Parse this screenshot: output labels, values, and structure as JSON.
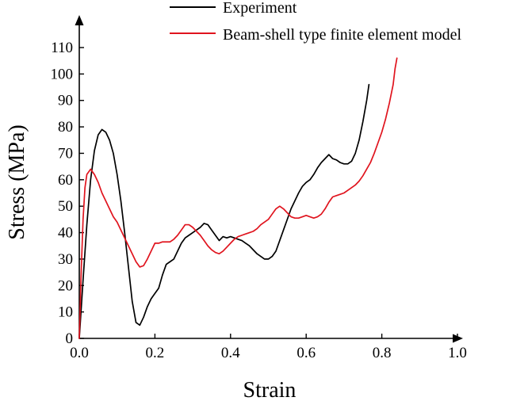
{
  "chart_data": {
    "type": "line",
    "title": "",
    "xlabel": "Strain",
    "ylabel": "Stress (MPa)",
    "xlim": [
      0.0,
      1.0
    ],
    "ylim": [
      0,
      110
    ],
    "xticks": [
      0.0,
      0.2,
      0.4,
      0.6,
      0.8,
      1.0
    ],
    "xtick_labels": [
      "0.0",
      "0.2",
      "0.4",
      "0.6",
      "0.8",
      "1.0"
    ],
    "yticks": [
      0,
      10,
      20,
      30,
      40,
      50,
      60,
      70,
      80,
      90,
      100,
      110
    ],
    "ytick_labels": [
      "0",
      "10",
      "20",
      "30",
      "40",
      "50",
      "60",
      "70",
      "80",
      "90",
      "100",
      "110"
    ],
    "grid": false,
    "legend": "top-right",
    "series": [
      {
        "name": "Experiment",
        "color": "#000000",
        "points": [
          [
            0.0,
            0
          ],
          [
            0.01,
            22
          ],
          [
            0.02,
            43
          ],
          [
            0.03,
            60
          ],
          [
            0.04,
            71
          ],
          [
            0.05,
            77
          ],
          [
            0.06,
            79
          ],
          [
            0.07,
            78
          ],
          [
            0.08,
            75
          ],
          [
            0.09,
            70
          ],
          [
            0.1,
            62
          ],
          [
            0.11,
            52
          ],
          [
            0.12,
            40
          ],
          [
            0.13,
            27
          ],
          [
            0.14,
            14
          ],
          [
            0.15,
            6
          ],
          [
            0.16,
            5
          ],
          [
            0.17,
            8
          ],
          [
            0.18,
            12
          ],
          [
            0.19,
            15
          ],
          [
            0.2,
            17
          ],
          [
            0.21,
            19
          ],
          [
            0.22,
            24
          ],
          [
            0.23,
            28
          ],
          [
            0.24,
            29
          ],
          [
            0.25,
            30
          ],
          [
            0.26,
            33
          ],
          [
            0.27,
            36
          ],
          [
            0.28,
            38
          ],
          [
            0.29,
            39
          ],
          [
            0.3,
            40
          ],
          [
            0.31,
            41
          ],
          [
            0.32,
            42
          ],
          [
            0.33,
            43.5
          ],
          [
            0.34,
            43
          ],
          [
            0.35,
            41
          ],
          [
            0.36,
            39
          ],
          [
            0.37,
            37
          ],
          [
            0.38,
            38.5
          ],
          [
            0.39,
            38
          ],
          [
            0.4,
            38.5
          ],
          [
            0.41,
            38
          ],
          [
            0.42,
            37.5
          ],
          [
            0.43,
            37
          ],
          [
            0.44,
            36
          ],
          [
            0.45,
            35
          ],
          [
            0.46,
            33.5
          ],
          [
            0.47,
            32
          ],
          [
            0.48,
            31
          ],
          [
            0.49,
            30
          ],
          [
            0.5,
            30
          ],
          [
            0.51,
            31
          ],
          [
            0.52,
            33
          ],
          [
            0.53,
            37
          ],
          [
            0.54,
            41
          ],
          [
            0.55,
            45
          ],
          [
            0.56,
            49
          ],
          [
            0.57,
            52
          ],
          [
            0.58,
            55
          ],
          [
            0.59,
            57.5
          ],
          [
            0.6,
            59
          ],
          [
            0.61,
            60
          ],
          [
            0.62,
            62
          ],
          [
            0.63,
            64.5
          ],
          [
            0.64,
            66.5
          ],
          [
            0.65,
            68
          ],
          [
            0.66,
            69.5
          ],
          [
            0.67,
            68
          ],
          [
            0.68,
            67.5
          ],
          [
            0.69,
            66.5
          ],
          [
            0.7,
            66
          ],
          [
            0.71,
            66
          ],
          [
            0.72,
            67
          ],
          [
            0.73,
            70
          ],
          [
            0.74,
            75
          ],
          [
            0.75,
            82
          ],
          [
            0.76,
            90
          ],
          [
            0.766,
            96
          ]
        ]
      },
      {
        "name": "Beam-shell type finite element model",
        "color": "#e0141e",
        "points": [
          [
            0.0,
            0
          ],
          [
            0.005,
            25
          ],
          [
            0.01,
            45
          ],
          [
            0.015,
            57
          ],
          [
            0.02,
            62
          ],
          [
            0.03,
            64
          ],
          [
            0.04,
            62
          ],
          [
            0.05,
            59
          ],
          [
            0.06,
            55
          ],
          [
            0.07,
            52
          ],
          [
            0.08,
            49
          ],
          [
            0.09,
            46
          ],
          [
            0.1,
            44
          ],
          [
            0.11,
            41
          ],
          [
            0.12,
            38
          ],
          [
            0.13,
            35
          ],
          [
            0.14,
            32
          ],
          [
            0.15,
            29
          ],
          [
            0.16,
            27
          ],
          [
            0.17,
            27.5
          ],
          [
            0.18,
            30
          ],
          [
            0.19,
            33
          ],
          [
            0.2,
            36
          ],
          [
            0.21,
            36
          ],
          [
            0.22,
            36.5
          ],
          [
            0.23,
            36.5
          ],
          [
            0.24,
            36.5
          ],
          [
            0.25,
            37.5
          ],
          [
            0.26,
            39
          ],
          [
            0.27,
            41
          ],
          [
            0.28,
            43
          ],
          [
            0.29,
            43
          ],
          [
            0.3,
            42
          ],
          [
            0.31,
            40.5
          ],
          [
            0.32,
            39
          ],
          [
            0.33,
            37
          ],
          [
            0.34,
            35
          ],
          [
            0.35,
            33.5
          ],
          [
            0.36,
            32.5
          ],
          [
            0.37,
            32
          ],
          [
            0.38,
            33
          ],
          [
            0.39,
            34.5
          ],
          [
            0.4,
            36
          ],
          [
            0.41,
            37.5
          ],
          [
            0.42,
            38.5
          ],
          [
            0.43,
            39
          ],
          [
            0.44,
            39.5
          ],
          [
            0.45,
            40
          ],
          [
            0.46,
            40.5
          ],
          [
            0.47,
            41.5
          ],
          [
            0.48,
            43
          ],
          [
            0.49,
            44
          ],
          [
            0.5,
            45
          ],
          [
            0.51,
            47
          ],
          [
            0.52,
            49
          ],
          [
            0.53,
            50
          ],
          [
            0.54,
            49
          ],
          [
            0.55,
            47.5
          ],
          [
            0.56,
            46
          ],
          [
            0.57,
            45.5
          ],
          [
            0.58,
            45.5
          ],
          [
            0.59,
            46
          ],
          [
            0.6,
            46.5
          ],
          [
            0.61,
            46
          ],
          [
            0.62,
            45.5
          ],
          [
            0.63,
            46
          ],
          [
            0.64,
            47
          ],
          [
            0.65,
            49
          ],
          [
            0.66,
            51.5
          ],
          [
            0.67,
            53.5
          ],
          [
            0.68,
            54
          ],
          [
            0.69,
            54.5
          ],
          [
            0.7,
            55
          ],
          [
            0.71,
            56
          ],
          [
            0.72,
            57
          ],
          [
            0.73,
            58
          ],
          [
            0.74,
            59.5
          ],
          [
            0.75,
            61.5
          ],
          [
            0.76,
            64
          ],
          [
            0.77,
            66.5
          ],
          [
            0.78,
            70
          ],
          [
            0.79,
            74
          ],
          [
            0.8,
            78
          ],
          [
            0.81,
            83
          ],
          [
            0.82,
            89
          ],
          [
            0.83,
            96
          ],
          [
            0.835,
            102
          ],
          [
            0.84,
            106
          ]
        ]
      }
    ]
  }
}
